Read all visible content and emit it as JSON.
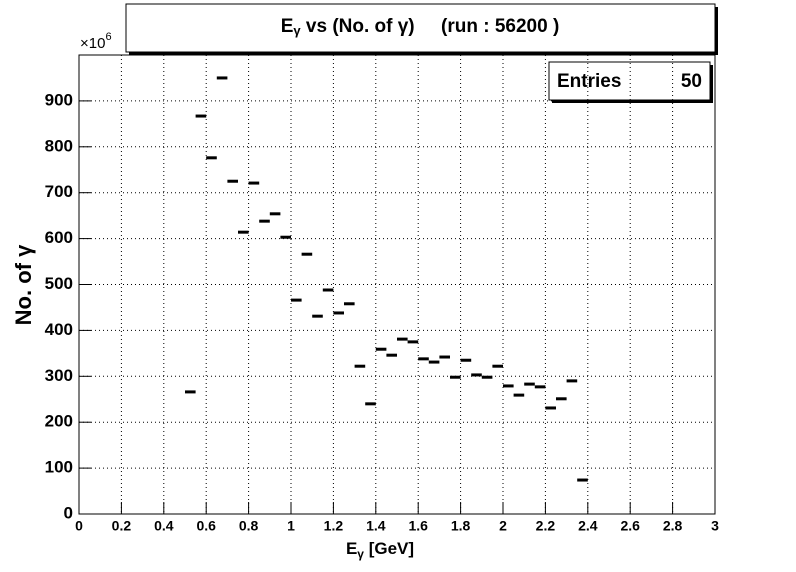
{
  "chart_data": {
    "type": "histogram",
    "title": {
      "main": "E",
      "sub": "γ",
      "rest": " vs (No. of γ)     (run : 56200 )"
    },
    "x_label": {
      "main": "E",
      "sub": "γ",
      "rest": " [GeV]"
    },
    "y_label": "No. of γ",
    "y_multiplier": {
      "base": "×10",
      "exp": "6"
    },
    "stats": {
      "label": "Entries",
      "value": "50"
    },
    "bins": [
      0.5,
      0.55,
      0.6,
      0.65,
      0.7,
      0.75,
      0.8,
      0.85,
      0.9,
      0.95,
      1,
      1.05,
      1.1,
      1.15,
      1.2,
      1.25,
      1.3,
      1.35,
      1.4,
      1.45,
      1.5,
      1.55,
      1.6,
      1.65,
      1.7,
      1.75,
      1.8,
      1.85,
      1.9,
      1.95,
      2,
      2.05,
      2.1,
      2.15,
      2.2,
      2.25,
      2.3,
      2.35,
      2.4
    ],
    "values": [
      266,
      867,
      776,
      950,
      725,
      614,
      721,
      638,
      654,
      603,
      466,
      566,
      431,
      488,
      438,
      458,
      322,
      240,
      359,
      346,
      381,
      375,
      338,
      331,
      342,
      298,
      335,
      303,
      298,
      322,
      279,
      259,
      283,
      277,
      231,
      251,
      290,
      74
    ],
    "color": "#000000",
    "xlim": [
      0,
      3
    ],
    "xticks": [
      0,
      0.2,
      0.4,
      0.6,
      0.8,
      1,
      1.2,
      1.4,
      1.6,
      1.8,
      2,
      2.2,
      2.4,
      2.6,
      2.8,
      3
    ],
    "ylim": [
      0,
      1000
    ],
    "yticks": [
      0,
      100,
      200,
      300,
      400,
      500,
      600,
      700,
      800,
      900
    ],
    "grid": true
  }
}
